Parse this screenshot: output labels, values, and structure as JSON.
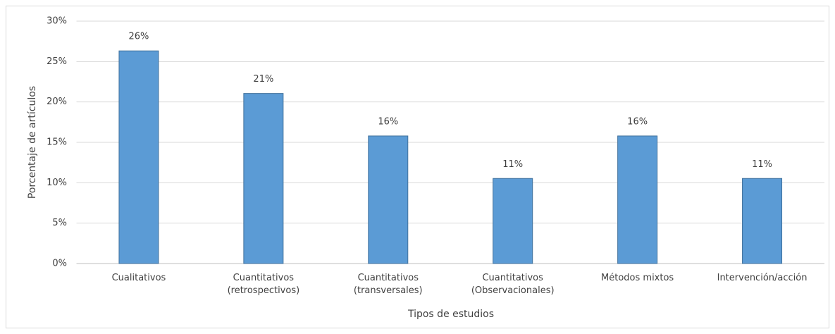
{
  "chart_data": {
    "type": "bar",
    "categories": [
      "Cualitativos",
      "Cuantitativos\n(retrospectivos)",
      "Cuantitativos\n(transversales)",
      "Cuantitativos\n(Observacionales)",
      "Métodos mixtos",
      "Intervención/acción"
    ],
    "values": [
      26.32,
      21.05,
      15.79,
      10.53,
      15.79,
      10.53
    ],
    "value_labels": [
      "26%",
      "21%",
      "16%",
      "11%",
      "16%",
      "11%"
    ],
    "color": "#5b9bd5",
    "x_label": "Tipos de estudios",
    "y_label": "Porcentaje de artículos",
    "ylim": [
      0,
      30
    ],
    "yticks": [
      {
        "value": 0,
        "label": "0%"
      },
      {
        "value": 5,
        "label": "5%"
      },
      {
        "value": 10,
        "label": "10%"
      },
      {
        "value": 15,
        "label": "15%"
      },
      {
        "value": 20,
        "label": "20%"
      },
      {
        "value": 25,
        "label": "25%"
      },
      {
        "value": 30,
        "label": "30%"
      }
    ],
    "grid": true
  }
}
